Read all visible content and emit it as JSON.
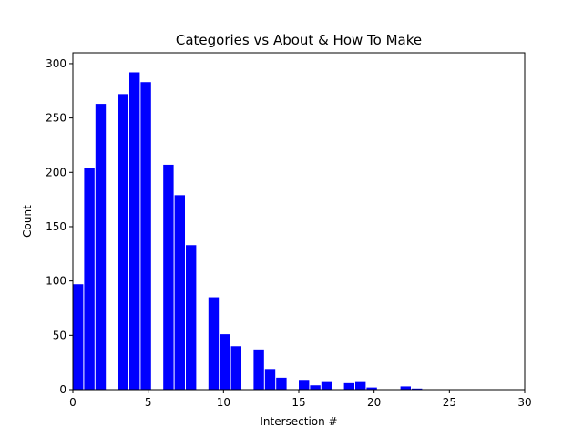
{
  "chart_data": {
    "type": "bar",
    "title": "Categories vs About & How To Make",
    "xlabel": "Intersection #",
    "ylabel": "Count",
    "xlim": [
      0,
      30
    ],
    "ylim": [
      0,
      310
    ],
    "xticks": [
      0,
      5,
      10,
      15,
      20,
      25,
      30
    ],
    "yticks": [
      0,
      50,
      100,
      150,
      200,
      250,
      300
    ],
    "grid": false,
    "bar_color": "#0000ff",
    "bin_width": 0.75,
    "bars": [
      {
        "x": 0,
        "value": 97
      },
      {
        "x": 0.75,
        "value": 204
      },
      {
        "x": 1.5,
        "value": 263
      },
      {
        "x": 3,
        "value": 272
      },
      {
        "x": 3.75,
        "value": 292
      },
      {
        "x": 4.5,
        "value": 283
      },
      {
        "x": 6,
        "value": 207
      },
      {
        "x": 6.75,
        "value": 179
      },
      {
        "x": 7.5,
        "value": 133
      },
      {
        "x": 9,
        "value": 85
      },
      {
        "x": 9.75,
        "value": 51
      },
      {
        "x": 10.5,
        "value": 40
      },
      {
        "x": 12,
        "value": 37
      },
      {
        "x": 12.75,
        "value": 19
      },
      {
        "x": 13.5,
        "value": 11
      },
      {
        "x": 15,
        "value": 9
      },
      {
        "x": 15.75,
        "value": 4
      },
      {
        "x": 16.5,
        "value": 7
      },
      {
        "x": 18,
        "value": 6
      },
      {
        "x": 18.75,
        "value": 7
      },
      {
        "x": 19.5,
        "value": 2
      },
      {
        "x": 21.75,
        "value": 3
      },
      {
        "x": 22.5,
        "value": 1
      }
    ]
  }
}
